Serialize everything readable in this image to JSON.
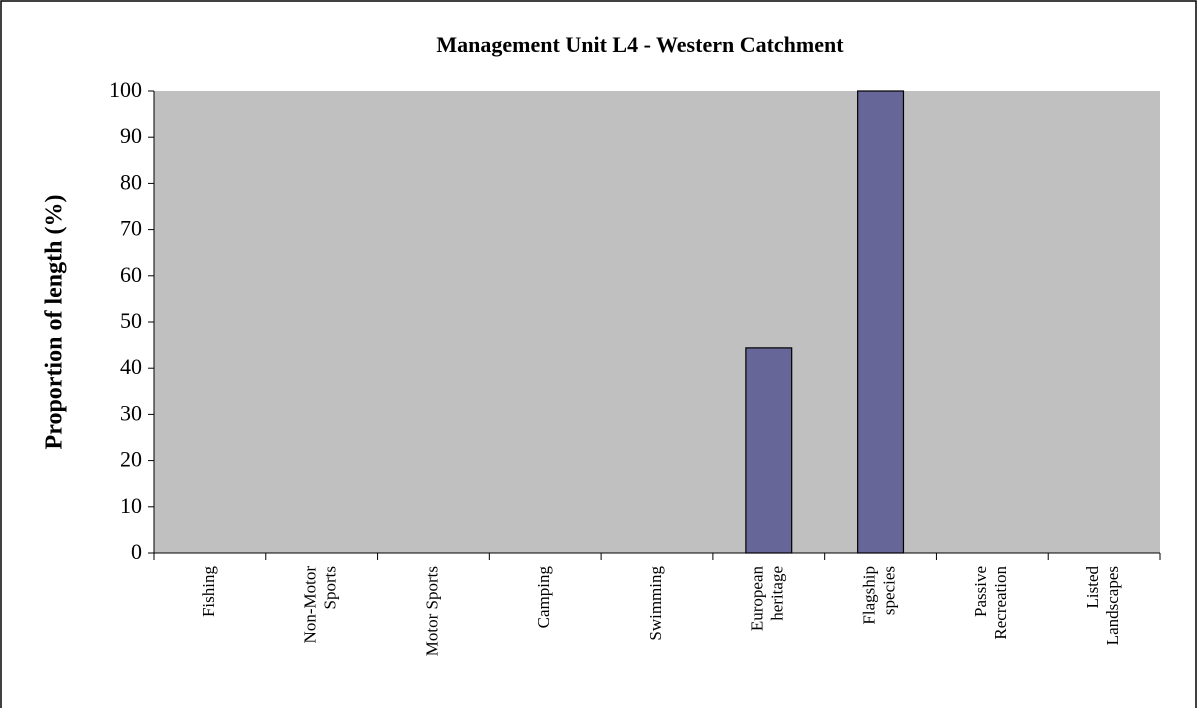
{
  "chart_data": {
    "type": "bar",
    "title": "Management Unit L4 - Western Catchment",
    "y_label": "Proportion of length (%)",
    "categories": [
      [
        "Fishing"
      ],
      [
        "Non-Motor",
        "Sports"
      ],
      [
        "Motor Sports"
      ],
      [
        "Camping"
      ],
      [
        "Swimming"
      ],
      [
        "European",
        "heritage"
      ],
      [
        "Flagship",
        "species"
      ],
      [
        "Passive",
        "Recreation"
      ],
      [
        "Listed",
        "Landscapes"
      ]
    ],
    "values": [
      0,
      0,
      0,
      0,
      0,
      44.4,
      100,
      0,
      0
    ],
    "color": "#666699",
    "plot_background": "#c0c0c0",
    "ylim": [
      0,
      100
    ],
    "yticks": [
      0,
      10,
      20,
      30,
      40,
      50,
      60,
      70,
      80,
      90,
      100
    ],
    "grid": false
  }
}
